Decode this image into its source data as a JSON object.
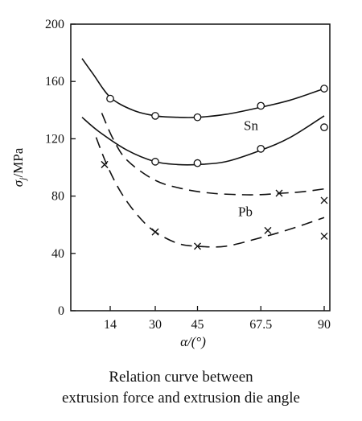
{
  "chart_data": {
    "type": "line",
    "x_ticks": [
      14,
      30,
      45,
      67.5,
      90
    ],
    "x_tick_labels": [
      "14",
      "30",
      "45",
      "67.5",
      "90"
    ],
    "y_ticks": [
      0,
      40,
      80,
      120,
      160,
      200
    ],
    "y_tick_labels": [
      "0",
      "40",
      "80",
      "120",
      "160",
      "200"
    ],
    "xlim": [
      0,
      92
    ],
    "ylim": [
      0,
      200
    ],
    "xlabel": "α/(°)",
    "ylabel": "σj/MPa",
    "ylabel_main": "σ",
    "ylabel_sub": "j",
    "ylabel_rest": "/MPa",
    "grid": false,
    "series": [
      {
        "name": "Sn",
        "style": "solid",
        "marker": "circle",
        "curve": [
          [
            4,
            176
          ],
          [
            8,
            165
          ],
          [
            14,
            149
          ],
          [
            22,
            140
          ],
          [
            30,
            136
          ],
          [
            38,
            135
          ],
          [
            45,
            135
          ],
          [
            55,
            137
          ],
          [
            67.5,
            142
          ],
          [
            78,
            147
          ],
          [
            90,
            155
          ]
        ],
        "points": [
          [
            14,
            148
          ],
          [
            30,
            136
          ],
          [
            45,
            135
          ],
          [
            67.5,
            143
          ],
          [
            90,
            155
          ]
        ]
      },
      {
        "style": "solid",
        "marker": "circle",
        "curve": [
          [
            4,
            135
          ],
          [
            10,
            125
          ],
          [
            20,
            112
          ],
          [
            30,
            104
          ],
          [
            38,
            102
          ],
          [
            45,
            102
          ],
          [
            55,
            104
          ],
          [
            67.5,
            112
          ],
          [
            78,
            121
          ],
          [
            90,
            136
          ]
        ],
        "points": [
          [
            30,
            104
          ],
          [
            45,
            103
          ],
          [
            67.5,
            113
          ],
          [
            90,
            128
          ]
        ]
      },
      {
        "name": "Pb",
        "style": "dashed",
        "marker": "x",
        "curve": [
          [
            11,
            138
          ],
          [
            15,
            120
          ],
          [
            20,
            105
          ],
          [
            30,
            91
          ],
          [
            40,
            85
          ],
          [
            50,
            82
          ],
          [
            60,
            81
          ],
          [
            67.5,
            81
          ],
          [
            75,
            82
          ],
          [
            82,
            83
          ],
          [
            90,
            85
          ]
        ],
        "points": [
          [
            12,
            102
          ],
          [
            74,
            82
          ],
          [
            90,
            77
          ]
        ]
      },
      {
        "style": "dashed",
        "marker": "x",
        "curve": [
          [
            9,
            121
          ],
          [
            13,
            101
          ],
          [
            18,
            82
          ],
          [
            24,
            66
          ],
          [
            30,
            55
          ],
          [
            38,
            47
          ],
          [
            45,
            45
          ],
          [
            55,
            45
          ],
          [
            67.5,
            51
          ],
          [
            78,
            57
          ],
          [
            90,
            65
          ]
        ],
        "points": [
          [
            12,
            102
          ],
          [
            30,
            55
          ],
          [
            45,
            45
          ],
          [
            70,
            56
          ],
          [
            90,
            52
          ]
        ]
      }
    ],
    "series_labels": [
      {
        "text": "Sn",
        "x": 64,
        "y": 126
      },
      {
        "text": "Pb",
        "x": 62,
        "y": 66
      }
    ],
    "caption_lines": [
      "Relation curve between",
      "extrusion force and extrusion die angle"
    ]
  }
}
